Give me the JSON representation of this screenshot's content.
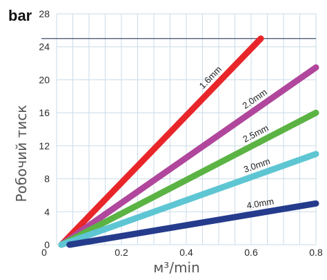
{
  "chart_data": {
    "type": "line",
    "ylabel": "Робочий тиск",
    "y_unit": "bar",
    "xlabel": "м³/min",
    "xlim": [
      0,
      0.8
    ],
    "ylim": [
      0,
      28
    ],
    "x_ticks": [
      "0",
      "0.2",
      "0.4",
      "0.6",
      "0.8"
    ],
    "y_ticks": [
      "0",
      "4",
      "8",
      "12",
      "16",
      "20",
      "24",
      "28"
    ],
    "grid": true,
    "reference_line_y": 25,
    "series": [
      {
        "name": "1.6mm",
        "color": "#e8262a",
        "points": [
          [
            0.015,
            0
          ],
          [
            0.63,
            25
          ]
        ]
      },
      {
        "name": "2.0mm",
        "color": "#b0479c",
        "points": [
          [
            0.015,
            0
          ],
          [
            0.8,
            21.5
          ]
        ]
      },
      {
        "name": "2.5mm",
        "color": "#5bb344",
        "points": [
          [
            0.015,
            0
          ],
          [
            0.8,
            16
          ]
        ]
      },
      {
        "name": "3.0mm",
        "color": "#5ec6d3",
        "points": [
          [
            0.015,
            0
          ],
          [
            0.8,
            11
          ]
        ]
      },
      {
        "name": "4.0mm",
        "color": "#253b8c",
        "points": [
          [
            0.04,
            0
          ],
          [
            0.8,
            5
          ]
        ]
      }
    ]
  }
}
